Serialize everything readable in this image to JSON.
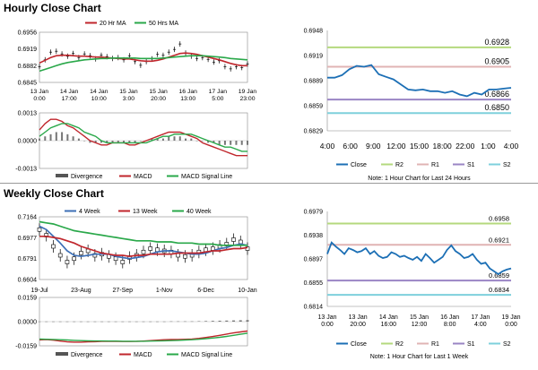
{
  "sections": {
    "hourly_title": "Hourly Close Chart",
    "weekly_title": "Weekly Close Chart"
  },
  "chart_data": [
    {
      "id": "hourly-price",
      "type": "line",
      "legend": [
        "20 Hr MA",
        "50 Hrs MA"
      ],
      "yticks": [
        "0.6956",
        "0.6919",
        "0.6882",
        "0.6845"
      ],
      "ylim": [
        0.6845,
        0.6956
      ],
      "xticks": [
        "13 Jan\n0:00",
        "14 Jan\n17:00",
        "14 Jan\n10:00",
        "15 Jan\n3:00",
        "15 Jan\n20:00",
        "16 Jan\n13:00",
        "17 Jan\n5:00",
        "19 Jan\n23:00"
      ],
      "series": [
        {
          "name": "Close",
          "color": "#000000",
          "values": [
            0.688,
            0.6895,
            0.6912,
            0.6914,
            0.6908,
            0.6903,
            0.6909,
            0.69,
            0.6908,
            0.6904,
            0.6897,
            0.6905,
            0.6902,
            0.6898,
            0.69,
            0.6895,
            0.6904,
            0.6891,
            0.6883,
            0.6891,
            0.6897,
            0.6907,
            0.6905,
            0.6912,
            0.6918,
            0.693,
            0.691,
            0.6903,
            0.6898,
            0.69,
            0.6896,
            0.689,
            0.6893,
            0.688,
            0.6875,
            0.688,
            0.6878,
            0.6886
          ]
        },
        {
          "name": "20 Hr MA",
          "color": "#c0262c",
          "values": [
            0.6888,
            0.6894,
            0.69,
            0.6904,
            0.6905,
            0.6905,
            0.6904,
            0.6903,
            0.6903,
            0.6902,
            0.6901,
            0.6901,
            0.69,
            0.6899,
            0.6898,
            0.6897,
            0.6897,
            0.6895,
            0.6893,
            0.6892,
            0.6892,
            0.6894,
            0.6897,
            0.6901,
            0.6905,
            0.6909,
            0.691,
            0.6909,
            0.6907,
            0.6904,
            0.6901,
            0.6898,
            0.6895,
            0.6891,
            0.6887,
            0.6884,
            0.6882,
            0.6882
          ]
        },
        {
          "name": "50 Hrs MA",
          "color": "#2aa84a",
          "values": [
            0.687,
            0.6874,
            0.6878,
            0.6882,
            0.6886,
            0.6889,
            0.6891,
            0.6893,
            0.6895,
            0.6896,
            0.6897,
            0.6898,
            0.6898,
            0.6899,
            0.6899,
            0.6899,
            0.6899,
            0.6899,
            0.6898,
            0.6898,
            0.6898,
            0.6898,
            0.6899,
            0.69,
            0.6901,
            0.6902,
            0.6903,
            0.6904,
            0.6904,
            0.6904,
            0.6903,
            0.6902,
            0.6901,
            0.69,
            0.6898,
            0.6897,
            0.6896,
            0.6895
          ]
        }
      ]
    },
    {
      "id": "hourly-macd",
      "type": "bar",
      "legend": [
        "Divergence",
        "MACD",
        "MACD Signal Line"
      ],
      "yticks": [
        "0.0013",
        "0.0000",
        "-0.0013"
      ],
      "ylim": [
        -0.0013,
        0.0013
      ],
      "divergence": [
        0.0001,
        0.0002,
        0.0003,
        0.0004,
        0.0004,
        0.0003,
        0.0002,
        0.0001,
        0.0,
        -0.0001,
        -0.0001,
        -0.0001,
        -0.0001,
        -0.0001,
        -0.0001,
        -0.0001,
        -0.0001,
        -0.0001,
        0.0,
        0.0,
        0.0001,
        0.0001,
        0.0001,
        0.0002,
        0.0002,
        0.0002,
        0.0001,
        0.0001,
        0.0,
        0.0,
        -0.0001,
        -0.0001,
        -0.0002,
        -0.0002,
        -0.0002,
        -0.0002,
        -0.0002,
        -0.0002
      ],
      "series": [
        {
          "name": "MACD",
          "color": "#c0262c",
          "values": [
            0.0005,
            0.0008,
            0.001,
            0.001,
            0.0009,
            0.0007,
            0.0006,
            0.0004,
            0.0002,
            0.0,
            -0.0001,
            -0.0002,
            -0.0002,
            -0.0001,
            -0.0001,
            -0.0001,
            -0.0002,
            -0.0002,
            -0.0001,
            0.0,
            0.0001,
            0.0002,
            0.0003,
            0.0004,
            0.0004,
            0.0004,
            0.0003,
            0.0002,
            0.0001,
            -0.0001,
            -0.0002,
            -0.0003,
            -0.0004,
            -0.0005,
            -0.0006,
            -0.0007,
            -0.0007,
            -0.0007
          ]
        },
        {
          "name": "MACD Signal Line",
          "color": "#2aa84a",
          "values": [
            0.0002,
            0.0004,
            0.0006,
            0.0007,
            0.0008,
            0.0008,
            0.0007,
            0.0006,
            0.0004,
            0.0003,
            0.0002,
            0.0,
            -0.0001,
            -0.0001,
            -0.0001,
            -0.0001,
            -0.0001,
            -0.0001,
            -0.0001,
            -0.0001,
            0.0,
            0.0001,
            0.0002,
            0.0002,
            0.0003,
            0.0003,
            0.0003,
            0.0003,
            0.0002,
            0.0001,
            0.0,
            -0.0001,
            -0.0002,
            -0.0003,
            -0.0003,
            -0.0004,
            -0.0005,
            -0.0005
          ]
        }
      ]
    },
    {
      "id": "hourly-pivot",
      "type": "line",
      "yticks": [
        "0.6948",
        "0.6919",
        "0.6889",
        "0.6859",
        "0.6829"
      ],
      "ylim": [
        0.6829,
        0.6948
      ],
      "xticks": [
        "4:00",
        "6:00",
        "9:00",
        "12:00",
        "15:00",
        "18:00",
        "22:00",
        "1:00",
        "4:00"
      ],
      "levels": [
        {
          "name": "R2",
          "value": 0.6928,
          "label": "0.6928",
          "color": "#b4d97e"
        },
        {
          "name": "R1",
          "value": 0.6905,
          "label": "0.6905",
          "color": "#e0b4b4"
        },
        {
          "name": "S1",
          "value": 0.6866,
          "label": "0.6866",
          "color": "#9a85c4"
        },
        {
          "name": "S2",
          "value": 0.685,
          "label": "0.6850",
          "color": "#7ed0dc"
        }
      ],
      "series": [
        {
          "name": "Close",
          "color": "#1c6fb5",
          "values": [
            0.6892,
            0.6892,
            0.6895,
            0.6902,
            0.6906,
            0.6905,
            0.6907,
            0.6896,
            0.6893,
            0.689,
            0.6884,
            0.6878,
            0.6877,
            0.6878,
            0.6876,
            0.6876,
            0.6874,
            0.6876,
            0.6872,
            0.687,
            0.6874,
            0.6872,
            0.6878,
            0.6878,
            0.6879,
            0.688
          ]
        }
      ],
      "legend": [
        "Close",
        "R2",
        "R1",
        "S1",
        "S2"
      ],
      "note": "Note: 1 Hour Chart for Last 24 Hours"
    },
    {
      "id": "weekly-price",
      "type": "line",
      "legend": [
        "4 Week",
        "13 Week",
        "40 Week"
      ],
      "yticks": [
        "0.7164",
        "0.6977",
        "0.6791",
        "0.6604"
      ],
      "ylim": [
        0.6604,
        0.7164
      ],
      "xticks": [
        "19-Jul",
        "23-Aug",
        "27-Sep",
        "1-Nov",
        "6-Dec",
        "10-Jan"
      ],
      "series": [
        {
          "name": "Close",
          "color": "#000000",
          "values": [
            0.705,
            0.7,
            0.69,
            0.682,
            0.676,
            0.679,
            0.684,
            0.686,
            0.682,
            0.683,
            0.681,
            0.679,
            0.676,
            0.68,
            0.682,
            0.685,
            0.688,
            0.687,
            0.686,
            0.685,
            0.682,
            0.681,
            0.682,
            0.685,
            0.687,
            0.688,
            0.69,
            0.692,
            0.696,
            0.694,
            0.688
          ]
        },
        {
          "name": "4 Week",
          "color": "#3d6fb6",
          "values": [
            0.708,
            0.705,
            0.699,
            0.693,
            0.686,
            0.682,
            0.681,
            0.682,
            0.683,
            0.683,
            0.683,
            0.681,
            0.68,
            0.679,
            0.68,
            0.681,
            0.683,
            0.685,
            0.686,
            0.686,
            0.685,
            0.684,
            0.683,
            0.683,
            0.684,
            0.686,
            0.688,
            0.689,
            0.691,
            0.692,
            0.691
          ]
        },
        {
          "name": "13 Week",
          "color": "#c0262c",
          "values": [
            0.699,
            0.699,
            0.698,
            0.697,
            0.695,
            0.693,
            0.69,
            0.688,
            0.686,
            0.684,
            0.683,
            0.682,
            0.682,
            0.681,
            0.682,
            0.682,
            0.683,
            0.683,
            0.683,
            0.683,
            0.684,
            0.684,
            0.684,
            0.684,
            0.685,
            0.686,
            0.686,
            0.687,
            0.688,
            0.688,
            0.689
          ]
        },
        {
          "name": "40 Week",
          "color": "#2aa84a",
          "values": [
            0.712,
            0.711,
            0.71,
            0.708,
            0.706,
            0.704,
            0.703,
            0.702,
            0.701,
            0.7,
            0.699,
            0.698,
            0.697,
            0.696,
            0.695,
            0.695,
            0.695,
            0.694,
            0.694,
            0.694,
            0.693,
            0.693,
            0.693,
            0.692,
            0.692,
            0.692,
            0.691,
            0.691,
            0.691,
            0.691,
            0.691
          ]
        }
      ]
    },
    {
      "id": "weekly-macd",
      "type": "bar",
      "legend": [
        "Divergence",
        "MACD",
        "MACD Signal Line"
      ],
      "yticks": [
        "0.0159",
        "0.0000",
        "-0.0159"
      ],
      "ylim": [
        -0.0159,
        0.0159
      ],
      "divergence": [
        0.0001,
        0.0001,
        0.0001,
        0.0001,
        0.0001,
        0.0001,
        0.0001,
        0.0001,
        0.0001,
        0.0001,
        0.0001,
        0.0001,
        0.0001,
        0.0001,
        0.0001,
        0.0001,
        0.0001,
        0.0001,
        0.0001,
        0.0002,
        0.0002,
        0.0002,
        0.0002,
        0.0003,
        0.0004,
        0.0005,
        0.0006,
        0.0007,
        0.0008,
        0.0009,
        0.001
      ],
      "series": [
        {
          "name": "MACD",
          "color": "#c0262c",
          "values": [
            -0.012,
            -0.0118,
            -0.0122,
            -0.0128,
            -0.0133,
            -0.0135,
            -0.0135,
            -0.0133,
            -0.0132,
            -0.013,
            -0.013,
            -0.013,
            -0.0131,
            -0.0131,
            -0.013,
            -0.0128,
            -0.0125,
            -0.0122,
            -0.0119,
            -0.0118,
            -0.0117,
            -0.0116,
            -0.0114,
            -0.011,
            -0.0104,
            -0.0098,
            -0.009,
            -0.0082,
            -0.0074,
            -0.0068,
            -0.0062
          ]
        },
        {
          "name": "MACD Signal Line",
          "color": "#2aa84a",
          "values": [
            -0.0115,
            -0.0116,
            -0.0117,
            -0.0119,
            -0.0121,
            -0.0123,
            -0.0125,
            -0.0126,
            -0.0127,
            -0.0127,
            -0.0128,
            -0.0128,
            -0.0129,
            -0.0129,
            -0.0129,
            -0.0129,
            -0.0128,
            -0.0127,
            -0.0126,
            -0.0125,
            -0.0123,
            -0.0121,
            -0.0119,
            -0.0116,
            -0.0112,
            -0.0108,
            -0.0103,
            -0.0097,
            -0.009,
            -0.0083,
            -0.0076
          ]
        }
      ]
    },
    {
      "id": "weekly-pivot",
      "type": "line",
      "yticks": [
        "0.6979",
        "0.6938",
        "0.6897",
        "0.6855",
        "0.6814"
      ],
      "ylim": [
        0.6814,
        0.6979
      ],
      "xticks": [
        "13 Jan\n0:00",
        "13 Jan\n20:00",
        "14 Jan\n16:00",
        "15 Jan\n12:00",
        "16 Jan\n8:00",
        "17 Jan\n4:00",
        "19 Jan\n0:00"
      ],
      "levels": [
        {
          "name": "R2",
          "value": 0.6958,
          "label": "0.6958",
          "color": "#b4d97e"
        },
        {
          "name": "R1",
          "value": 0.6921,
          "label": "0.6921",
          "color": "#e0b4b4"
        },
        {
          "name": "S1",
          "value": 0.6859,
          "label": "0.6859",
          "color": "#9a85c4"
        },
        {
          "name": "S2",
          "value": 0.6834,
          "label": "0.6834",
          "color": "#7ed0dc"
        }
      ],
      "series": [
        {
          "name": "Close",
          "color": "#1c6fb5",
          "values": [
            0.6905,
            0.6925,
            0.6918,
            0.6912,
            0.6905,
            0.6915,
            0.6912,
            0.6908,
            0.691,
            0.6915,
            0.6905,
            0.691,
            0.6902,
            0.6898,
            0.69,
            0.6908,
            0.6905,
            0.69,
            0.6902,
            0.6898,
            0.6895,
            0.69,
            0.6893,
            0.6905,
            0.6898,
            0.689,
            0.6895,
            0.69,
            0.6912,
            0.692,
            0.691,
            0.6905,
            0.6898,
            0.69,
            0.6905,
            0.6895,
            0.6888,
            0.689,
            0.688,
            0.6875,
            0.687,
            0.6875,
            0.6878,
            0.688
          ]
        }
      ],
      "legend": [
        "Close",
        "R2",
        "R1",
        "S1",
        "S2"
      ],
      "note": "Note: 1 Hour Chart for Last 1 Week"
    }
  ]
}
